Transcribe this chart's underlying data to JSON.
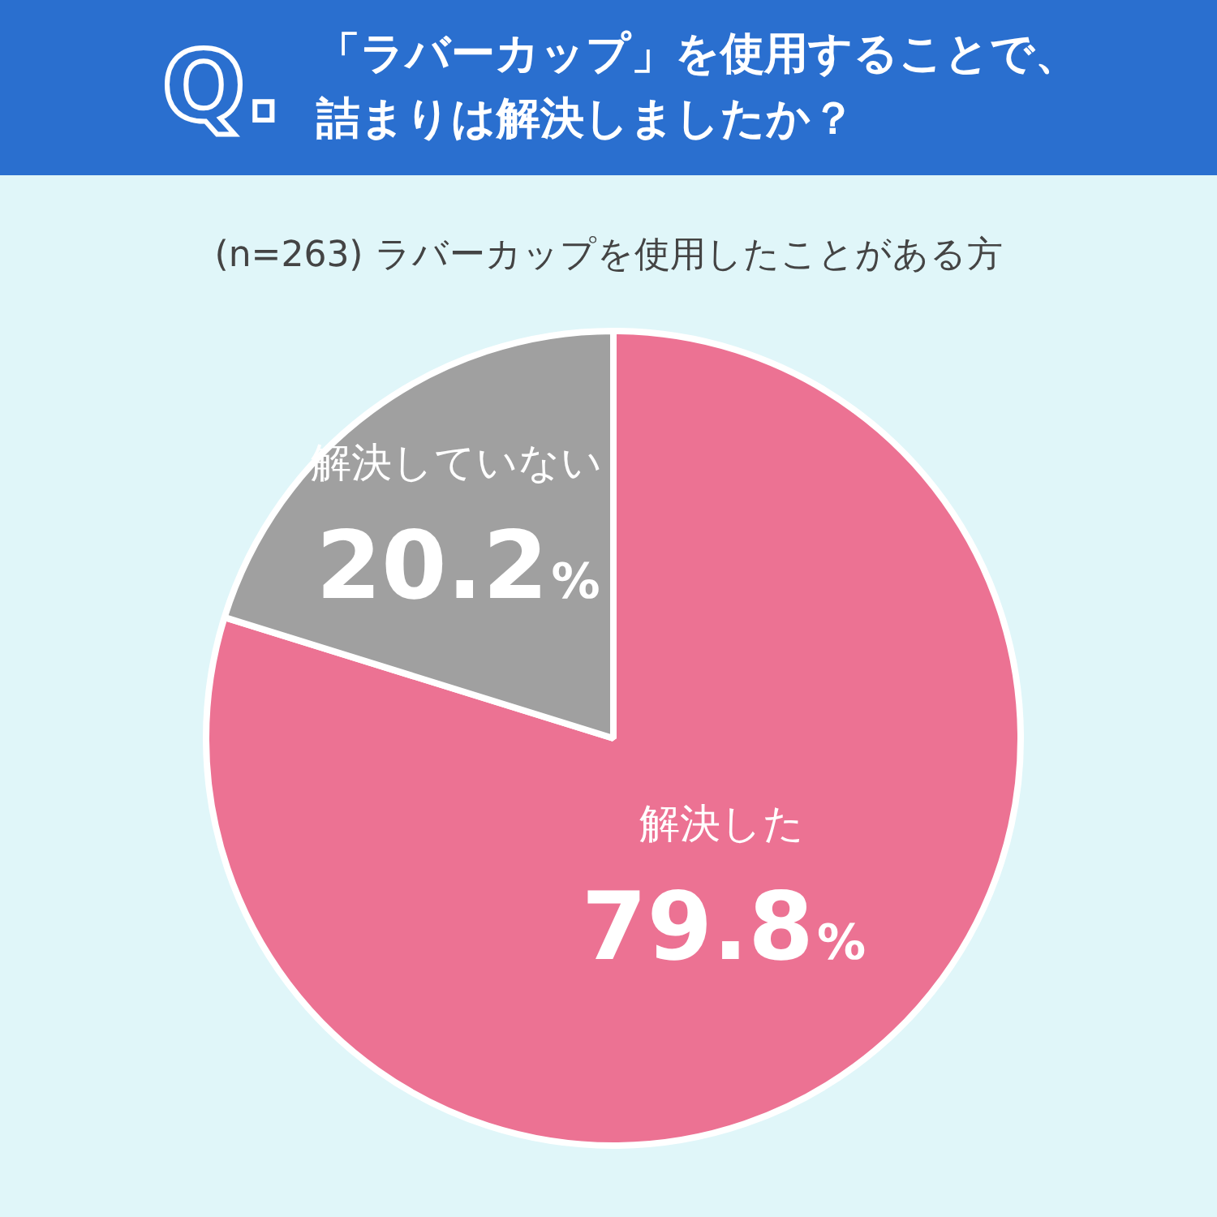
{
  "chart_data": {
    "type": "pie",
    "title": "「ラバーカップ」を使用することで、詰まりは解決しましたか？",
    "subtitle": "(n=263) ラバーカップを使用したことがある方",
    "annotations": [
      "Q."
    ],
    "categories": [
      "解決した",
      "解決していない"
    ],
    "values": [
      79.8,
      20.2
    ],
    "colors": [
      "#ec7293",
      "#a0a0a0"
    ],
    "value_labels": [
      "79.8%",
      "20.2%"
    ],
    "legend": false
  }
}
